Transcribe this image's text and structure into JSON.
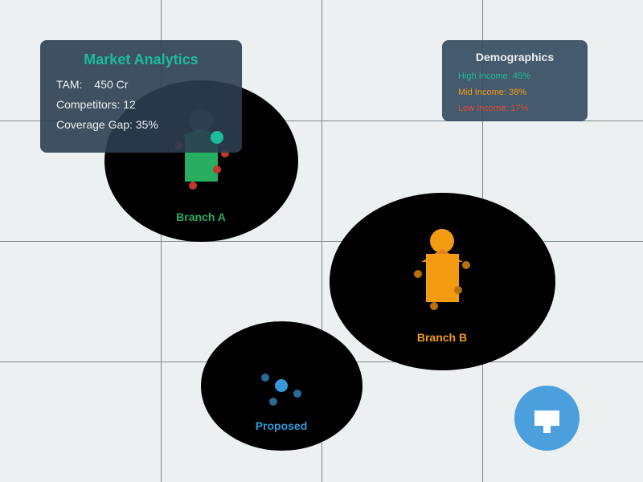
{
  "colors": {
    "background": "#ecf0f1",
    "gridline": "#7f8c8d",
    "zone": "#000000",
    "branch_a": "#27ae60",
    "branch_b": "#f39c12",
    "proposed": "#3498db",
    "teal": "#1abc9c",
    "red": "#c0392b"
  },
  "market": {
    "title": "Market Analytics",
    "tam_label": "TAM:",
    "tam_value": "450 Cr",
    "competitors": "Competitors: 12",
    "coverage_gap": "Coverage Gap: 35%"
  },
  "demographics": {
    "title": "Demographics",
    "high": "High Income: 45%",
    "mid": "Mid Income: 38%",
    "low": "Low Income: 17%"
  },
  "zones": {
    "branch_a": "Branch A",
    "branch_b": "Branch B",
    "proposed": "Proposed"
  },
  "fab": {
    "icon": "kiosk-icon"
  }
}
